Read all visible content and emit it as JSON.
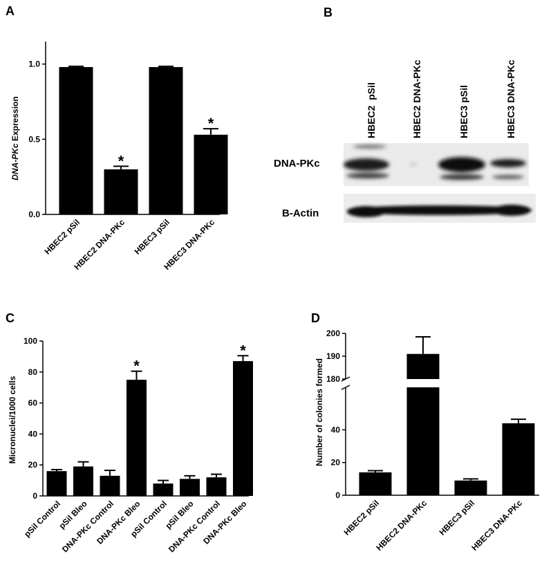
{
  "chart_data": [
    {
      "panel": "A",
      "type": "bar",
      "categories": [
        "HBEC2 pSil",
        "HBEC2 DNA-PKc",
        "HBEC3 pSil",
        "HBEC3 DNA-PKc"
      ],
      "values": [
        0.98,
        0.3,
        0.98,
        0.53
      ],
      "errors": [
        0.005,
        0.02,
        0.005,
        0.04
      ],
      "significant": [
        false,
        true,
        false,
        true
      ],
      "ylabel_italic": "DNA-PKc",
      "ylabel_rest": " Expression",
      "yticks": [
        "0.0",
        "0.5",
        "1.0"
      ],
      "ytick_values": [
        0,
        0.5,
        1.0
      ],
      "ylim": [
        0,
        1.15
      ],
      "bar_color": "#000000"
    },
    {
      "panel": "B",
      "type": "western-blot",
      "lanes": [
        "HBEC2  pSil",
        "HBEC2 DNA-PKc",
        "HBEC3 pSil",
        "HBEC3 DNA-PKc"
      ],
      "bands": [
        "DNA-PKc",
        "B-Actin"
      ]
    },
    {
      "panel": "C",
      "type": "bar",
      "categories": [
        "pSil Control",
        "pSil Bleo",
        "DNA-PKc Control",
        "DNA-PKc Bleo",
        "pSil Control",
        "pSil Bleo",
        "DNA-PKc Control",
        "DNA-PKc Bleo"
      ],
      "values": [
        16,
        19,
        13,
        75,
        8,
        11,
        12,
        87
      ],
      "errors": [
        1,
        3,
        3.5,
        5.5,
        2,
        2,
        2,
        3.5
      ],
      "significant": [
        false,
        false,
        false,
        true,
        false,
        false,
        false,
        true
      ],
      "ylabel": "Micronuclei/1000 cells",
      "yticks": [
        "0",
        "20",
        "40",
        "60",
        "80",
        "100"
      ],
      "ytick_values": [
        0,
        20,
        40,
        60,
        80,
        100
      ],
      "ylim": [
        0,
        100
      ],
      "bar_color": "#000000"
    },
    {
      "panel": "D",
      "type": "bar",
      "categories": [
        "HBEC2 pSil",
        "HBEC2 DNA-PKc",
        "HBEC3 pSil",
        "HBEC3 DNA-PKc"
      ],
      "values": [
        14,
        191,
        9,
        44
      ],
      "errors": [
        1,
        7.5,
        1,
        2.5
      ],
      "ylabel": "Number of  colonies formed",
      "yticks_lower": [
        "0",
        "20",
        "40"
      ],
      "ytick_values_lower": [
        0,
        20,
        40
      ],
      "yticks_upper": [
        "180",
        "190",
        "200"
      ],
      "ytick_values_upper": [
        180,
        190,
        200
      ],
      "ylim_lower": [
        0,
        66
      ],
      "ylim_upper": [
        180,
        200
      ],
      "broken_axis": true,
      "bar_color": "#000000"
    }
  ]
}
